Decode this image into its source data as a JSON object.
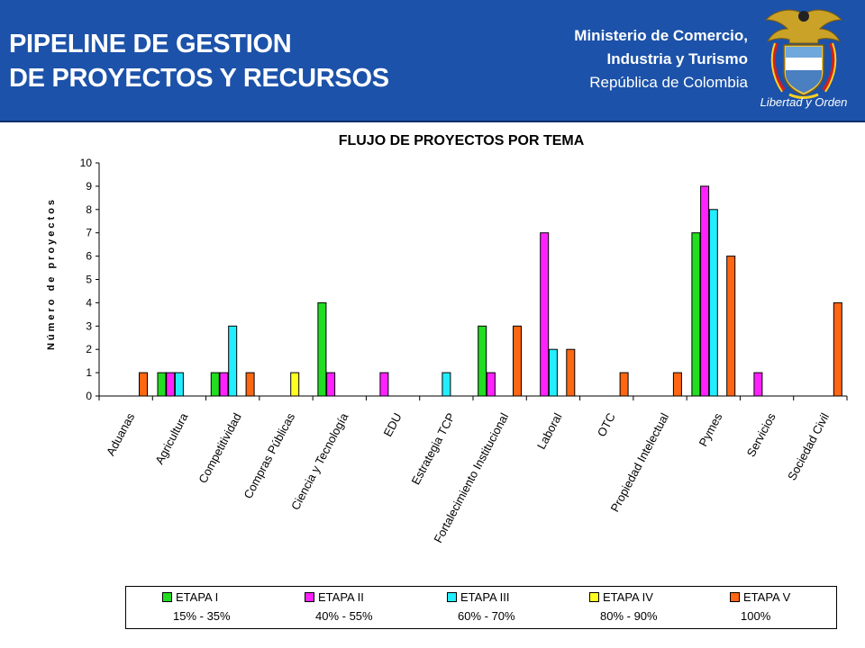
{
  "header": {
    "title_line1": "PIPELINE DE GESTION",
    "title_line2": "DE PROYECTOS Y RECURSOS",
    "ministry_line1": "Ministerio de Comercio,",
    "ministry_line2": "Industria y Turismo",
    "ministry_line3": "República de Colombia",
    "crest_motto": "Libertad y Orden",
    "colors": {
      "banner": "#1c52a9"
    }
  },
  "chart_data": {
    "type": "bar",
    "title": "FLUJO DE PROYECTOS POR TEMA",
    "ylabel": "Número de proyectos",
    "xlabel": "",
    "ylim": [
      0,
      10
    ],
    "yticks": [
      0,
      1,
      2,
      3,
      4,
      5,
      6,
      7,
      8,
      9,
      10
    ],
    "grid": false,
    "legend_position": "bottom",
    "categories": [
      "Aduanas",
      "Agricultura",
      "Competitividad",
      "Compras Públicas",
      "Ciencia y Tecnología",
      "EDU",
      "Estrategia TCP",
      "Fortalecimiento Institucional",
      "Laboral",
      "OTC",
      "Propiedad Intelectual",
      "Pymes",
      "Servicios",
      "Sociedad Civil"
    ],
    "series": [
      {
        "name": "ETAPA I",
        "range": "15% - 35%",
        "color": "#22dd22",
        "values": [
          0,
          1,
          1,
          0,
          4,
          0,
          0,
          3,
          0,
          0,
          0,
          7,
          0,
          0
        ]
      },
      {
        "name": "ETAPA II",
        "range": "40% - 55%",
        "color": "#ff22ff",
        "values": [
          0,
          1,
          1,
          0,
          1,
          1,
          0,
          1,
          7,
          0,
          0,
          9,
          1,
          0
        ]
      },
      {
        "name": "ETAPA III",
        "range": "60% - 70%",
        "color": "#22eeff",
        "values": [
          0,
          1,
          3,
          0,
          0,
          0,
          1,
          0,
          2,
          0,
          0,
          8,
          0,
          0
        ]
      },
      {
        "name": "ETAPA IV",
        "range": "80% - 90%",
        "color": "#ffff22",
        "values": [
          0,
          0,
          0,
          1,
          0,
          0,
          0,
          0,
          0,
          0,
          0,
          0,
          0,
          0
        ]
      },
      {
        "name": "ETAPA V",
        "range": "100%",
        "color": "#ff6611",
        "values": [
          1,
          0,
          1,
          0,
          0,
          0,
          0,
          3,
          2,
          1,
          1,
          6,
          0,
          4
        ]
      }
    ]
  }
}
